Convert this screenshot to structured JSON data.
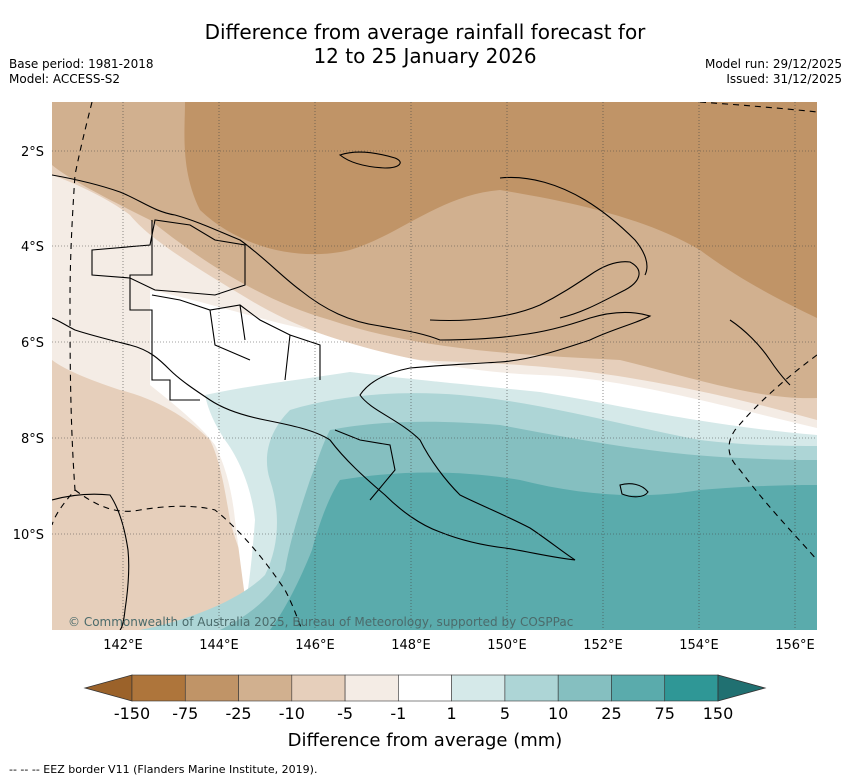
{
  "title_line1": "Difference from average rainfall forecast for",
  "title_line2": "12 to 25 January 2026",
  "base_period": "Base period: 1981-2018",
  "model": "Model: ACCESS-S2",
  "model_run": "Model run: 29/12/2025",
  "issued": "Issued: 31/12/2025",
  "copyright": "© Commonwealth of Australia 2025, Bureau of Meteorology, supported by COSPPac",
  "lat_labels": [
    "2°S",
    "4°S",
    "6°S",
    "8°S",
    "10°S"
  ],
  "lon_labels": [
    "142°E",
    "144°E",
    "146°E",
    "148°E",
    "150°E",
    "152°E",
    "154°E",
    "156°E"
  ],
  "colorbar": {
    "title": "Difference from average (mm)",
    "tick_labels": [
      "-150",
      "-75",
      "-25",
      "-10",
      "-5",
      "-1",
      "1",
      "5",
      "10",
      "25",
      "75",
      "150"
    ],
    "colors": {
      "below_min": "#9b622a",
      "bins": [
        "#ae753b",
        "#c09467",
        "#d1b08f",
        "#e6cfbb",
        "#f4ece5",
        "#ffffff",
        "#d5e9e9",
        "#add5d6",
        "#85bfc0",
        "#5aabac",
        "#2f9796"
      ],
      "above_max": "#207071"
    }
  },
  "footnote": "--  --  -- EEZ border V11 (Flanders Marine Institute, 2019)."
}
